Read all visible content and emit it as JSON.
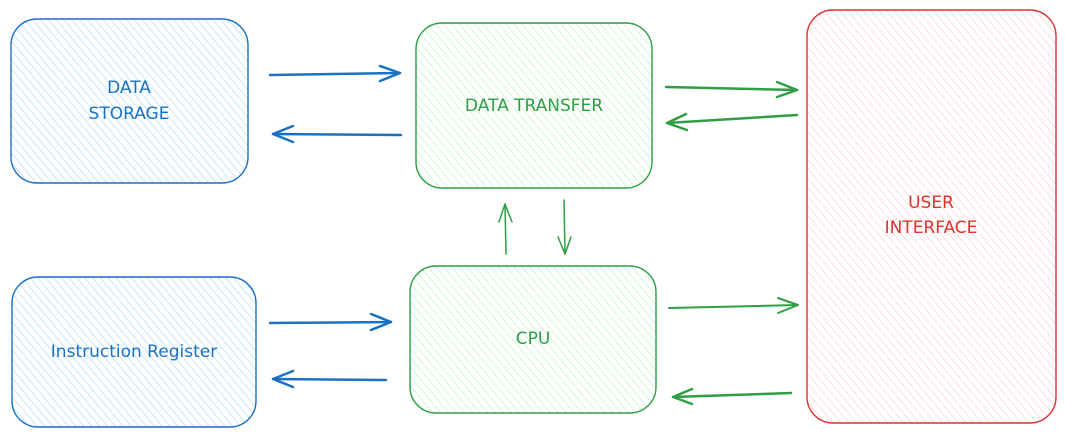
{
  "colors": {
    "blue_stroke": "#1971c2",
    "blue_fill": "#a5d8ff",
    "green_stroke": "#2f9e44",
    "green_fill": "#b2f2bb",
    "red_stroke": "#e03131",
    "red_fill": "#ffc9c9"
  },
  "nodes": {
    "data_storage": {
      "line1": "DATA",
      "line2": "STORAGE"
    },
    "data_transfer": {
      "label": "DATA TRANSFER"
    },
    "user_interface": {
      "line1": "USER",
      "line2": "INTERFACE"
    },
    "instruction_register": {
      "label": "Instruction Register"
    },
    "cpu": {
      "label": "CPU"
    }
  },
  "edges": [
    {
      "from": "data_storage",
      "to": "data_transfer"
    },
    {
      "from": "data_transfer",
      "to": "data_storage"
    },
    {
      "from": "data_transfer",
      "to": "user_interface"
    },
    {
      "from": "user_interface",
      "to": "data_transfer"
    },
    {
      "from": "cpu",
      "to": "data_transfer"
    },
    {
      "from": "data_transfer",
      "to": "cpu"
    },
    {
      "from": "instruction_register",
      "to": "cpu"
    },
    {
      "from": "cpu",
      "to": "instruction_register"
    },
    {
      "from": "cpu",
      "to": "user_interface"
    },
    {
      "from": "user_interface",
      "to": "cpu"
    }
  ]
}
